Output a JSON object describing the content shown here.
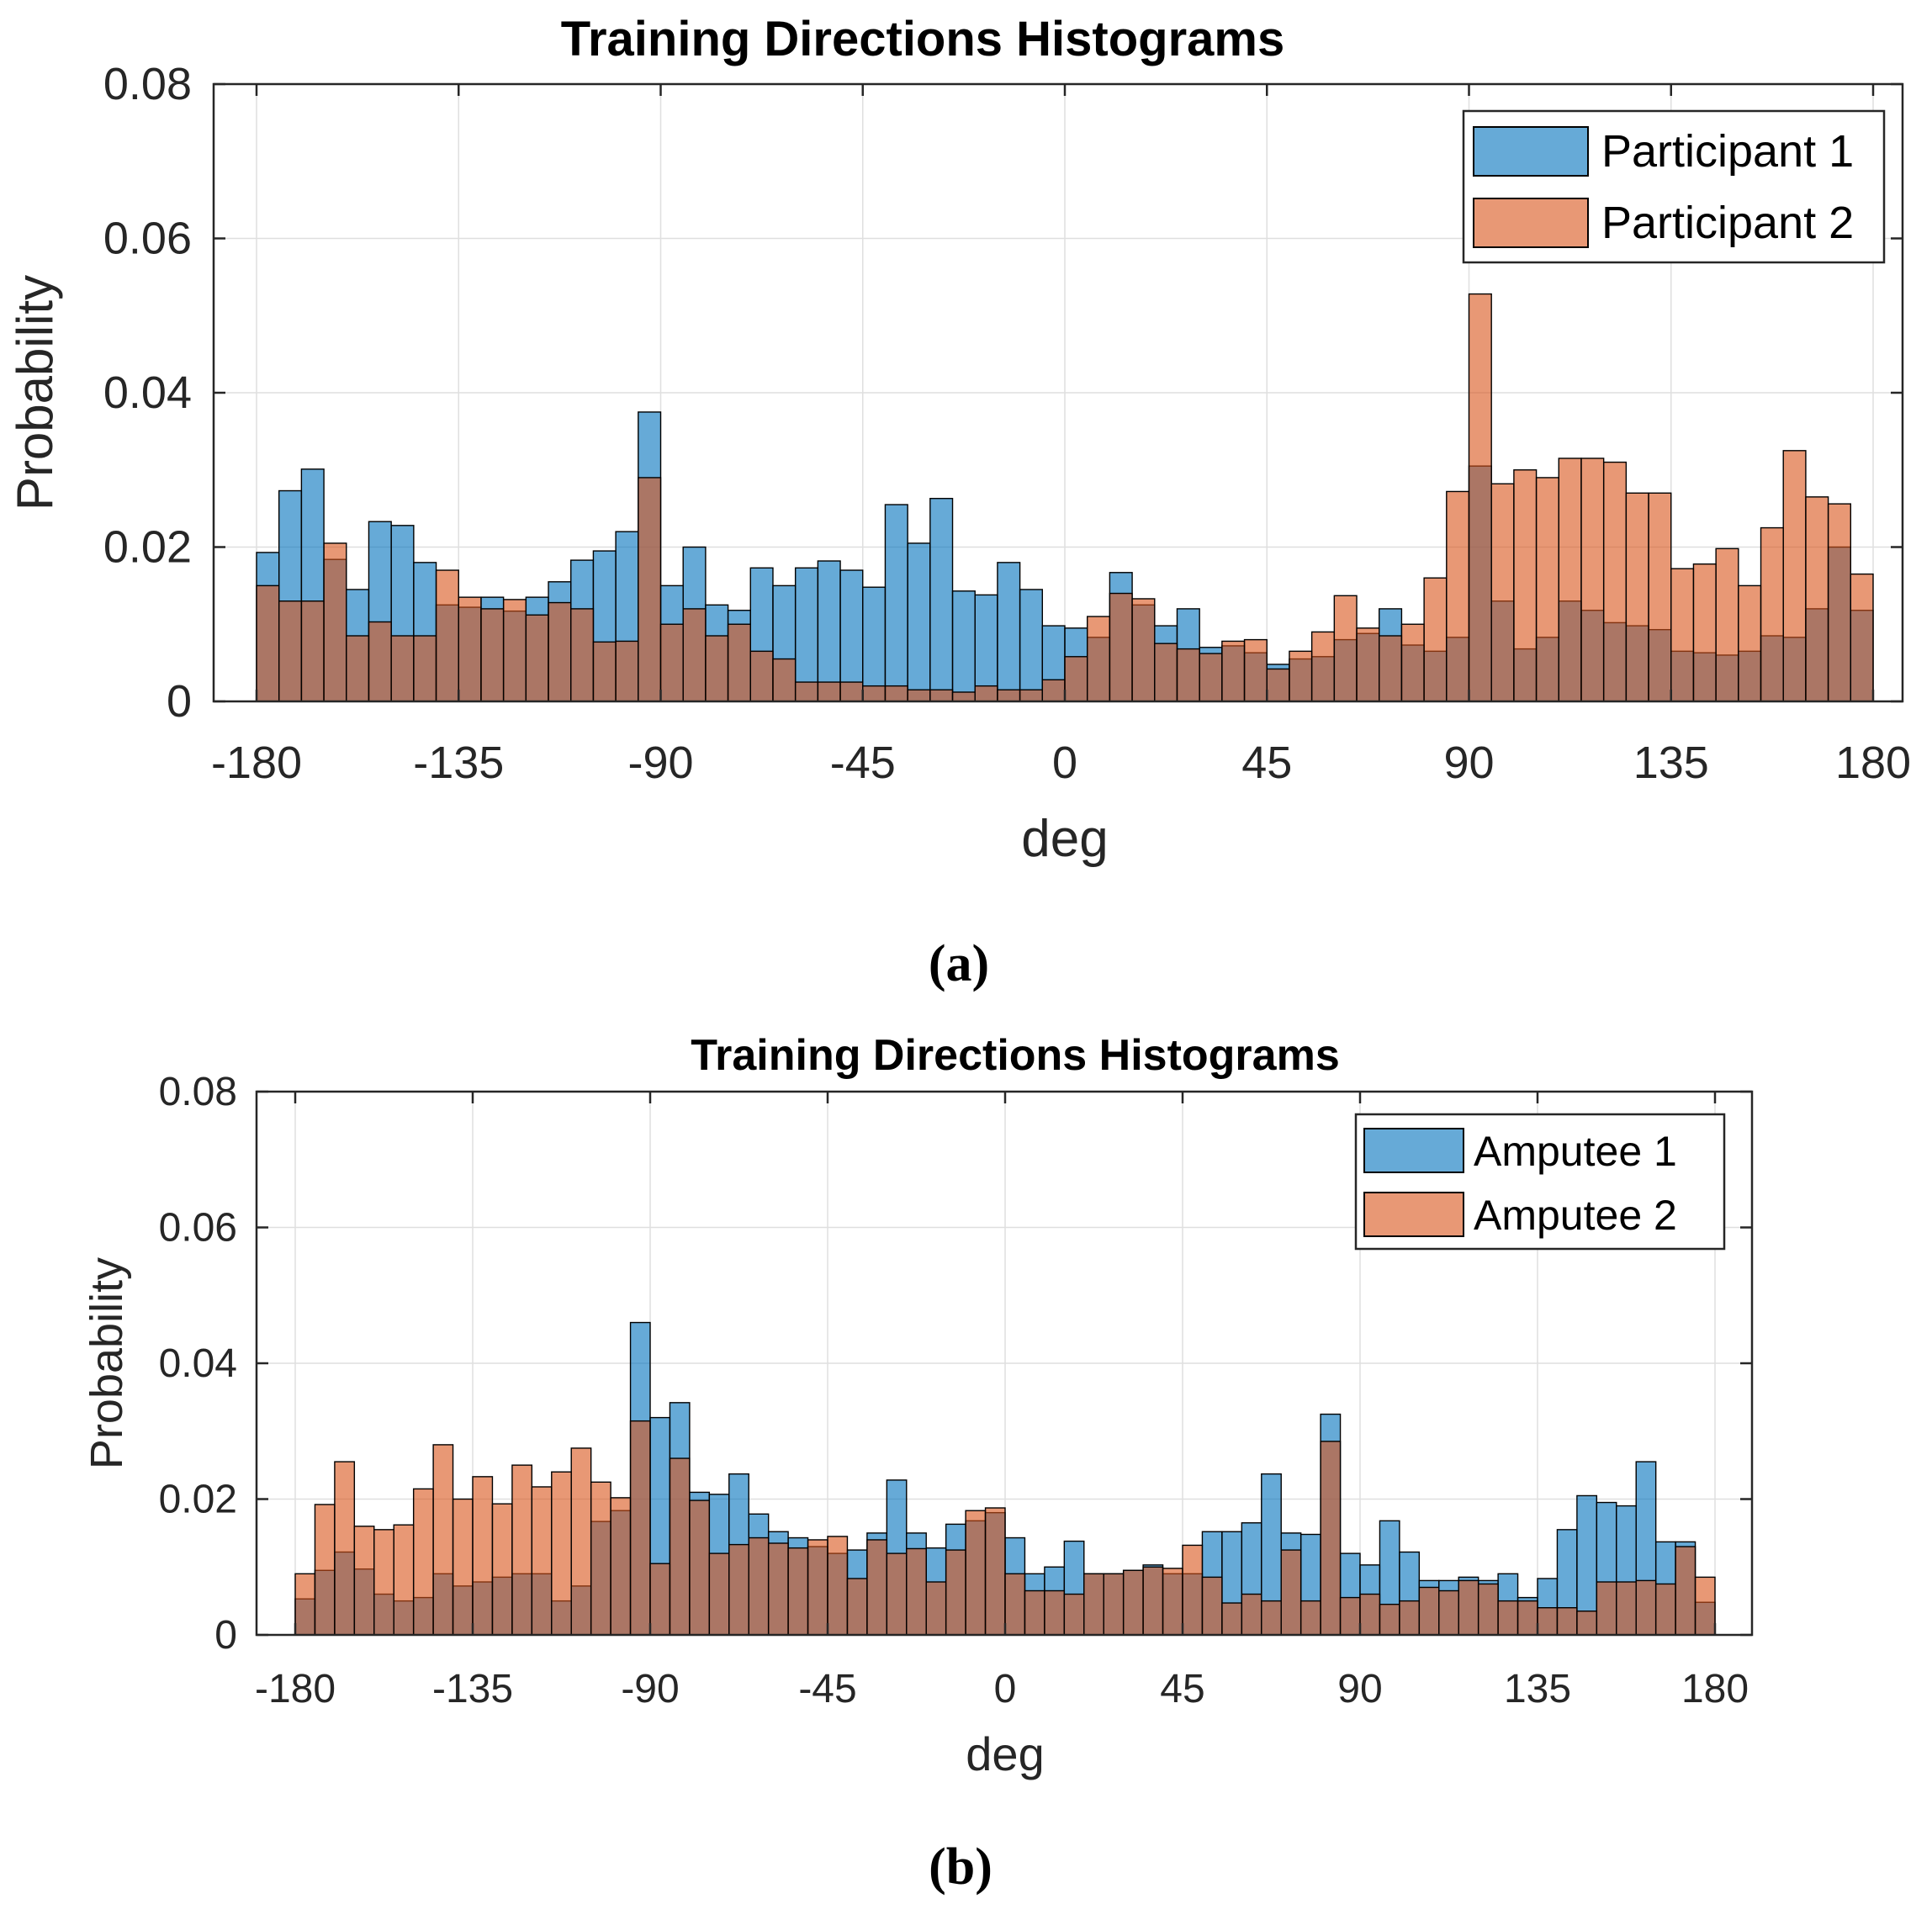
{
  "chart_data": [
    {
      "type": "bar",
      "subtype": "overlaid-histogram",
      "title": "Training Directions Histograms",
      "xlabel": "deg",
      "ylabel": "Probability",
      "xlim": [
        -180,
        180
      ],
      "ylim": [
        0,
        0.08
      ],
      "xticks": [
        "-180",
        "-135",
        "-90",
        "-45",
        "0",
        "45",
        "90",
        "135",
        "180"
      ],
      "yticks": [
        "0",
        "0.02",
        "0.04",
        "0.06",
        "0.08"
      ],
      "grid": true,
      "legend_position": "top-right",
      "caption": "(a)",
      "bin_width_deg": 5,
      "x": [
        -177.5,
        -172.5,
        -167.5,
        -162.5,
        -157.5,
        -152.5,
        -147.5,
        -142.5,
        -137.5,
        -132.5,
        -127.5,
        -122.5,
        -117.5,
        -112.5,
        -107.5,
        -102.5,
        -97.5,
        -92.5,
        -87.5,
        -82.5,
        -77.5,
        -72.5,
        -67.5,
        -62.5,
        -57.5,
        -52.5,
        -47.5,
        -42.5,
        -37.5,
        -32.5,
        -27.5,
        -22.5,
        -17.5,
        -12.5,
        -7.5,
        -2.5,
        2.5,
        7.5,
        12.5,
        17.5,
        22.5,
        27.5,
        32.5,
        37.5,
        42.5,
        47.5,
        52.5,
        57.5,
        62.5,
        67.5,
        72.5,
        77.5,
        82.5,
        87.5,
        92.5,
        97.5,
        102.5,
        107.5,
        112.5,
        117.5,
        122.5,
        127.5,
        132.5,
        137.5,
        142.5,
        147.5,
        152.5,
        157.5,
        162.5,
        167.5,
        172.5,
        177.5
      ],
      "series": [
        {
          "name": "Participant 1",
          "color": "#0072bd",
          "values": [
            0.0193,
            0.0273,
            0.0301,
            0.0184,
            0.0145,
            0.0233,
            0.0228,
            0.018,
            0.0125,
            0.0122,
            0.0135,
            0.0117,
            0.0135,
            0.0155,
            0.0183,
            0.0195,
            0.022,
            0.0375,
            0.015,
            0.02,
            0.0125,
            0.0118,
            0.0173,
            0.015,
            0.0173,
            0.0182,
            0.017,
            0.0148,
            0.0255,
            0.0205,
            0.0263,
            0.0143,
            0.0138,
            0.018,
            0.0145,
            0.0098,
            0.0095,
            0.0083,
            0.0167,
            0.0125,
            0.0098,
            0.012,
            0.007,
            0.0072,
            0.0063,
            0.0048,
            0.0055,
            0.0058,
            0.008,
            0.0088,
            0.012,
            0.0073,
            0.0065,
            0.0083,
            0.0305,
            0.013,
            0.0068,
            0.0083,
            0.013,
            0.0118,
            0.0102,
            0.0098,
            0.0093,
            0.0065,
            0.0063,
            0.006,
            0.0065,
            0.0085,
            0.0083,
            0.012,
            0.02,
            0.0118
          ]
        },
        {
          "name": "Participant 2",
          "color": "#d95319",
          "values": [
            0.015,
            0.013,
            0.013,
            0.0205,
            0.0085,
            0.0103,
            0.0085,
            0.0085,
            0.017,
            0.0135,
            0.012,
            0.0132,
            0.0112,
            0.0128,
            0.012,
            0.0077,
            0.0078,
            0.029,
            0.01,
            0.012,
            0.0085,
            0.01,
            0.0065,
            0.0055,
            0.0025,
            0.0025,
            0.0025,
            0.002,
            0.002,
            0.0015,
            0.0015,
            0.0012,
            0.002,
            0.0015,
            0.0015,
            0.0028,
            0.0058,
            0.011,
            0.014,
            0.0133,
            0.0075,
            0.0068,
            0.0062,
            0.0078,
            0.008,
            0.0042,
            0.0065,
            0.009,
            0.0137,
            0.0095,
            0.0085,
            0.01,
            0.016,
            0.0272,
            0.0528,
            0.0282,
            0.03,
            0.029,
            0.0315,
            0.0315,
            0.031,
            0.027,
            0.027,
            0.0172,
            0.0178,
            0.0198,
            0.015,
            0.0225,
            0.0325,
            0.0265,
            0.0256,
            0.0165
          ]
        }
      ]
    },
    {
      "type": "bar",
      "subtype": "overlaid-histogram",
      "title": "Training Directions Histograms",
      "xlabel": "deg",
      "ylabel": "Probability",
      "xlim": [
        -180,
        180
      ],
      "ylim": [
        0,
        0.08
      ],
      "xticks": [
        "-180",
        "-135",
        "-90",
        "-45",
        "0",
        "45",
        "90",
        "135",
        "180"
      ],
      "yticks": [
        "0",
        "0.02",
        "0.04",
        "0.06",
        "0.08"
      ],
      "grid": true,
      "legend_position": "top-right",
      "caption": "(b)",
      "bin_width_deg": 5,
      "x": [
        -177.5,
        -172.5,
        -167.5,
        -162.5,
        -157.5,
        -152.5,
        -147.5,
        -142.5,
        -137.5,
        -132.5,
        -127.5,
        -122.5,
        -117.5,
        -112.5,
        -107.5,
        -102.5,
        -97.5,
        -92.5,
        -87.5,
        -82.5,
        -77.5,
        -72.5,
        -67.5,
        -62.5,
        -57.5,
        -52.5,
        -47.5,
        -42.5,
        -37.5,
        -32.5,
        -27.5,
        -22.5,
        -17.5,
        -12.5,
        -7.5,
        -2.5,
        2.5,
        7.5,
        12.5,
        17.5,
        22.5,
        27.5,
        32.5,
        37.5,
        42.5,
        47.5,
        52.5,
        57.5,
        62.5,
        67.5,
        72.5,
        77.5,
        82.5,
        87.5,
        92.5,
        97.5,
        102.5,
        107.5,
        112.5,
        117.5,
        122.5,
        127.5,
        132.5,
        137.5,
        142.5,
        147.5,
        152.5,
        157.5,
        162.5,
        167.5,
        172.5,
        177.5
      ],
      "series": [
        {
          "name": "Amputee 1",
          "color": "#0072bd",
          "values": [
            0.0053,
            0.0095,
            0.0122,
            0.0097,
            0.006,
            0.005,
            0.0055,
            0.009,
            0.0072,
            0.0078,
            0.0085,
            0.009,
            0.009,
            0.005,
            0.0072,
            0.0167,
            0.0183,
            0.046,
            0.032,
            0.0342,
            0.021,
            0.0207,
            0.0237,
            0.0178,
            0.0152,
            0.0143,
            0.013,
            0.012,
            0.0125,
            0.015,
            0.0228,
            0.015,
            0.0128,
            0.0163,
            0.0168,
            0.018,
            0.0143,
            0.009,
            0.01,
            0.0138,
            0.009,
            0.009,
            0.0095,
            0.0103,
            0.009,
            0.009,
            0.0152,
            0.0152,
            0.0165,
            0.0237,
            0.015,
            0.0148,
            0.0325,
            0.012,
            0.0103,
            0.0168,
            0.0122,
            0.008,
            0.008,
            0.0085,
            0.008,
            0.009,
            0.0055,
            0.0083,
            0.0155,
            0.0205,
            0.0195,
            0.019,
            0.0255,
            0.0137,
            0.0137,
            0.0048
          ]
        },
        {
          "name": "Amputee 2",
          "color": "#d95319",
          "values": [
            0.009,
            0.0192,
            0.0255,
            0.016,
            0.0155,
            0.0162,
            0.0215,
            0.028,
            0.02,
            0.0233,
            0.0193,
            0.025,
            0.0218,
            0.024,
            0.0275,
            0.0225,
            0.0202,
            0.0315,
            0.0105,
            0.026,
            0.0198,
            0.012,
            0.0133,
            0.0143,
            0.0135,
            0.0128,
            0.014,
            0.0145,
            0.0083,
            0.014,
            0.012,
            0.0127,
            0.0078,
            0.0125,
            0.0183,
            0.0187,
            0.009,
            0.0065,
            0.0065,
            0.006,
            0.009,
            0.009,
            0.0095,
            0.01,
            0.0098,
            0.0132,
            0.0085,
            0.0047,
            0.006,
            0.005,
            0.0125,
            0.005,
            0.0285,
            0.0055,
            0.006,
            0.0045,
            0.005,
            0.007,
            0.0065,
            0.008,
            0.0075,
            0.005,
            0.005,
            0.004,
            0.004,
            0.0035,
            0.0078,
            0.0078,
            0.008,
            0.0075,
            0.013,
            0.0085
          ]
        }
      ]
    }
  ]
}
